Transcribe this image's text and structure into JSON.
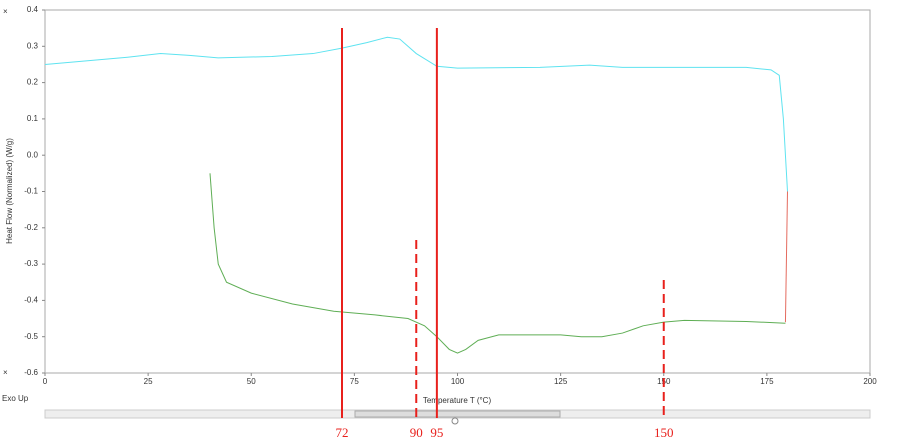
{
  "chart_data": {
    "type": "line",
    "ylabel": "Heat Flow (Normalized)  (W/g)",
    "xlabel": "Temperature  T  (°C)",
    "annotation": "Exo Up",
    "xlim": [
      0,
      200
    ],
    "xticks": [
      0,
      25,
      50,
      75,
      100,
      125,
      150,
      175,
      200
    ],
    "ylim": [
      -0.6,
      0.4
    ],
    "yticks": [
      0.4,
      0.3,
      0.2,
      0.1,
      {
        "value": 0,
        "label": "0.0"
      },
      -0.1,
      -0.2,
      -0.3,
      -0.4,
      -0.5,
      -0.6
    ],
    "series": [
      {
        "color": "#5ee3f0",
        "x": [
          0,
          10,
          20,
          28,
          35,
          42,
          55,
          65,
          72,
          78,
          83,
          86,
          90,
          95,
          100,
          120,
          132,
          140,
          170,
          176,
          178,
          179,
          180
        ],
        "values": [
          0.25,
          0.26,
          0.27,
          0.28,
          0.275,
          0.268,
          0.272,
          0.28,
          0.295,
          0.31,
          0.325,
          0.32,
          0.28,
          0.245,
          0.24,
          0.242,
          0.248,
          0.242,
          0.242,
          0.235,
          0.22,
          0.1,
          -0.1
        ]
      },
      {
        "color": "#e46b5f",
        "x": [
          180,
          179.5
        ],
        "values": [
          -0.1,
          -0.46
        ]
      },
      {
        "color": "#5fae55",
        "x": [
          40,
          41,
          42,
          44,
          50,
          60,
          70,
          80,
          88,
          92,
          95,
          98,
          100,
          102,
          105,
          110,
          120,
          125,
          130,
          135,
          140,
          145,
          150,
          155,
          170,
          179.5
        ],
        "values": [
          -0.05,
          -0.2,
          -0.3,
          -0.35,
          -0.38,
          -0.41,
          -0.43,
          -0.44,
          -0.45,
          -0.47,
          -0.5,
          -0.535,
          -0.545,
          -0.535,
          -0.51,
          -0.495,
          -0.495,
          -0.495,
          -0.5,
          -0.5,
          -0.49,
          -0.47,
          -0.46,
          -0.455,
          -0.458,
          -0.463
        ]
      }
    ],
    "markers": [
      {
        "value": 72,
        "style": "solid",
        "color": "#e8201c"
      },
      {
        "value": 90,
        "style": "dashed",
        "color": "#e8201c"
      },
      {
        "value": 95,
        "style": "solid",
        "color": "#e8201c"
      },
      {
        "value": 150,
        "style": "dashed",
        "color": "#e8201c"
      }
    ]
  }
}
